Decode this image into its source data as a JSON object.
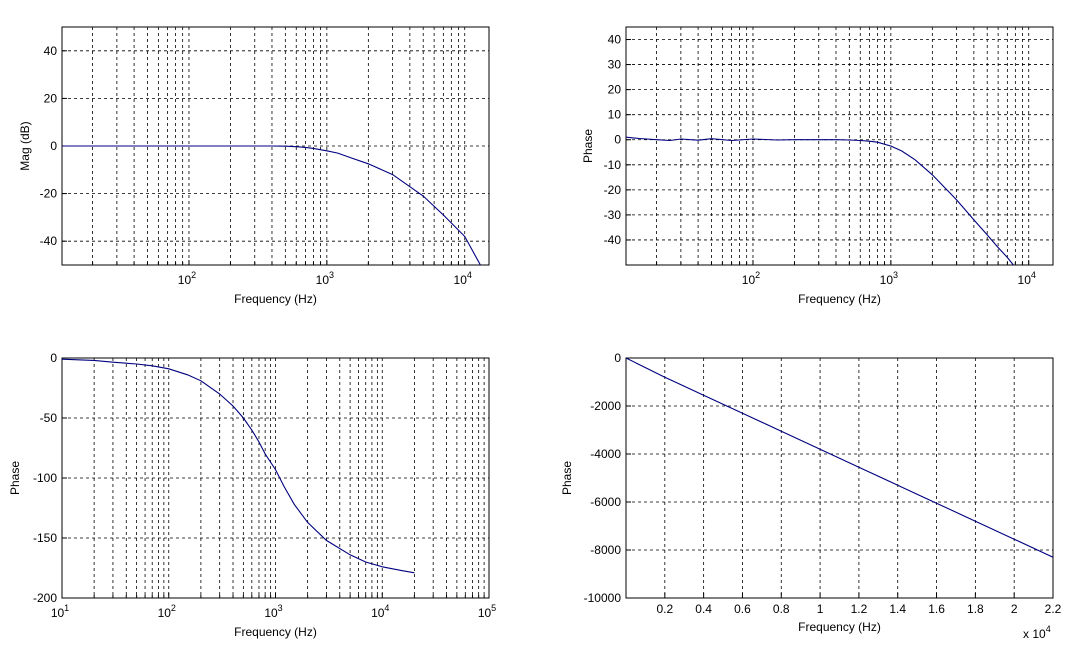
{
  "chart_data": [
    {
      "type": "line",
      "xscale": "log",
      "xlabel": "Frequency (Hz)",
      "ylabel": "Mag (dB)",
      "xlim": [
        12,
        15000
      ],
      "ylim": [
        -50,
        50
      ],
      "yticks": [
        40,
        20,
        0,
        -20,
        -40
      ],
      "xtick_labels": [
        {
          "base": "10",
          "exp": "2",
          "value": 100
        },
        {
          "base": "10",
          "exp": "3",
          "value": 1000
        },
        {
          "base": "10",
          "exp": "4",
          "value": 10000
        }
      ],
      "grid": true,
      "series": [
        {
          "color": "#00007f",
          "x": [
            12,
            20,
            50,
            100,
            200,
            300,
            400,
            500,
            600,
            700,
            800,
            1000,
            1200,
            1500,
            2000,
            3000,
            5000,
            7000,
            10000,
            13000
          ],
          "y": [
            0,
            0,
            0,
            0,
            0,
            0,
            0,
            -0.1,
            -0.3,
            -0.6,
            -1,
            -2,
            -3,
            -5,
            -7.5,
            -12,
            -21,
            -29,
            -38,
            -50
          ]
        }
      ]
    },
    {
      "type": "line",
      "xscale": "log",
      "xlabel": "Frequency (Hz)",
      "ylabel": "Phase",
      "xlim": [
        12,
        15000
      ],
      "ylim": [
        -50,
        45
      ],
      "yticks": [
        40,
        30,
        20,
        10,
        0,
        -10,
        -20,
        -30,
        -40
      ],
      "xtick_labels": [
        {
          "base": "10",
          "exp": "2",
          "value": 100
        },
        {
          "base": "10",
          "exp": "3",
          "value": 1000
        },
        {
          "base": "10",
          "exp": "4",
          "value": 10000
        }
      ],
      "grid": true,
      "series": [
        {
          "color": "#00007f",
          "x": [
            12,
            15,
            20,
            25,
            30,
            40,
            50,
            70,
            100,
            150,
            200,
            300,
            400,
            500,
            600,
            700,
            800,
            1000,
            1200,
            1500,
            2000,
            3000,
            4000,
            5000,
            6000,
            7000,
            8000
          ],
          "y": [
            1,
            0.5,
            0,
            -0.3,
            0.3,
            -0.2,
            0.4,
            -0.3,
            0.3,
            -0.1,
            0,
            0,
            0,
            -0.1,
            -0.3,
            -0.6,
            -1,
            -2.5,
            -4.5,
            -8,
            -14,
            -24,
            -32,
            -38,
            -43,
            -47,
            -51
          ]
        }
      ]
    },
    {
      "type": "line",
      "xscale": "log",
      "xlabel": "Frequency (Hz)",
      "ylabel": "Phase",
      "xlim": [
        10,
        100000
      ],
      "ylim": [
        -200,
        0
      ],
      "yticks": [
        0,
        -50,
        -100,
        -150,
        -200
      ],
      "xtick_labels": [
        {
          "base": "10",
          "exp": "1",
          "value": 10
        },
        {
          "base": "10",
          "exp": "2",
          "value": 100
        },
        {
          "base": "10",
          "exp": "3",
          "value": 1000
        },
        {
          "base": "10",
          "exp": "4",
          "value": 10000
        },
        {
          "base": "10",
          "exp": "5",
          "value": 100000
        }
      ],
      "grid": true,
      "series": [
        {
          "color": "#00007f",
          "x": [
            10,
            20,
            30,
            50,
            70,
            100,
            150,
            200,
            300,
            400,
            500,
            600,
            700,
            800,
            1000,
            1200,
            1500,
            2000,
            3000,
            5000,
            7000,
            10000,
            15000,
            20000
          ],
          "y": [
            -1,
            -2,
            -3.5,
            -5,
            -6.5,
            -9,
            -14,
            -19,
            -30,
            -40,
            -50,
            -60,
            -70,
            -80,
            -93,
            -107,
            -122,
            -137,
            -152,
            -164,
            -170,
            -174,
            -177,
            -179
          ]
        }
      ]
    },
    {
      "type": "line",
      "xscale": "linear",
      "xlabel": "Frequency (Hz)",
      "ylabel": "Phase",
      "xlim": [
        0,
        22000
      ],
      "ylim": [
        -10000,
        0
      ],
      "yticks": [
        0,
        -2000,
        -4000,
        -6000,
        -8000,
        -10000
      ],
      "xticks": [
        2000,
        4000,
        6000,
        8000,
        10000,
        12000,
        14000,
        16000,
        18000,
        20000,
        22000
      ],
      "xtick_text": [
        "0.2",
        "0.4",
        "0.6",
        "0.8",
        "1",
        "1.2",
        "1.4",
        "1.6",
        "1.8",
        "2",
        "2.2"
      ],
      "x_multiplier": {
        "prefix": "x 10",
        "exp": "4"
      },
      "grid": true,
      "series": [
        {
          "color": "#00007f",
          "x": [
            0,
            1000,
            2000,
            4000,
            6000,
            8000,
            10000,
            12000,
            14000,
            16000,
            18000,
            20000,
            22000
          ],
          "y": [
            0,
            -400,
            -800,
            -1550,
            -2300,
            -3050,
            -3800,
            -4550,
            -5300,
            -6050,
            -6800,
            -7550,
            -8300
          ]
        }
      ]
    }
  ]
}
